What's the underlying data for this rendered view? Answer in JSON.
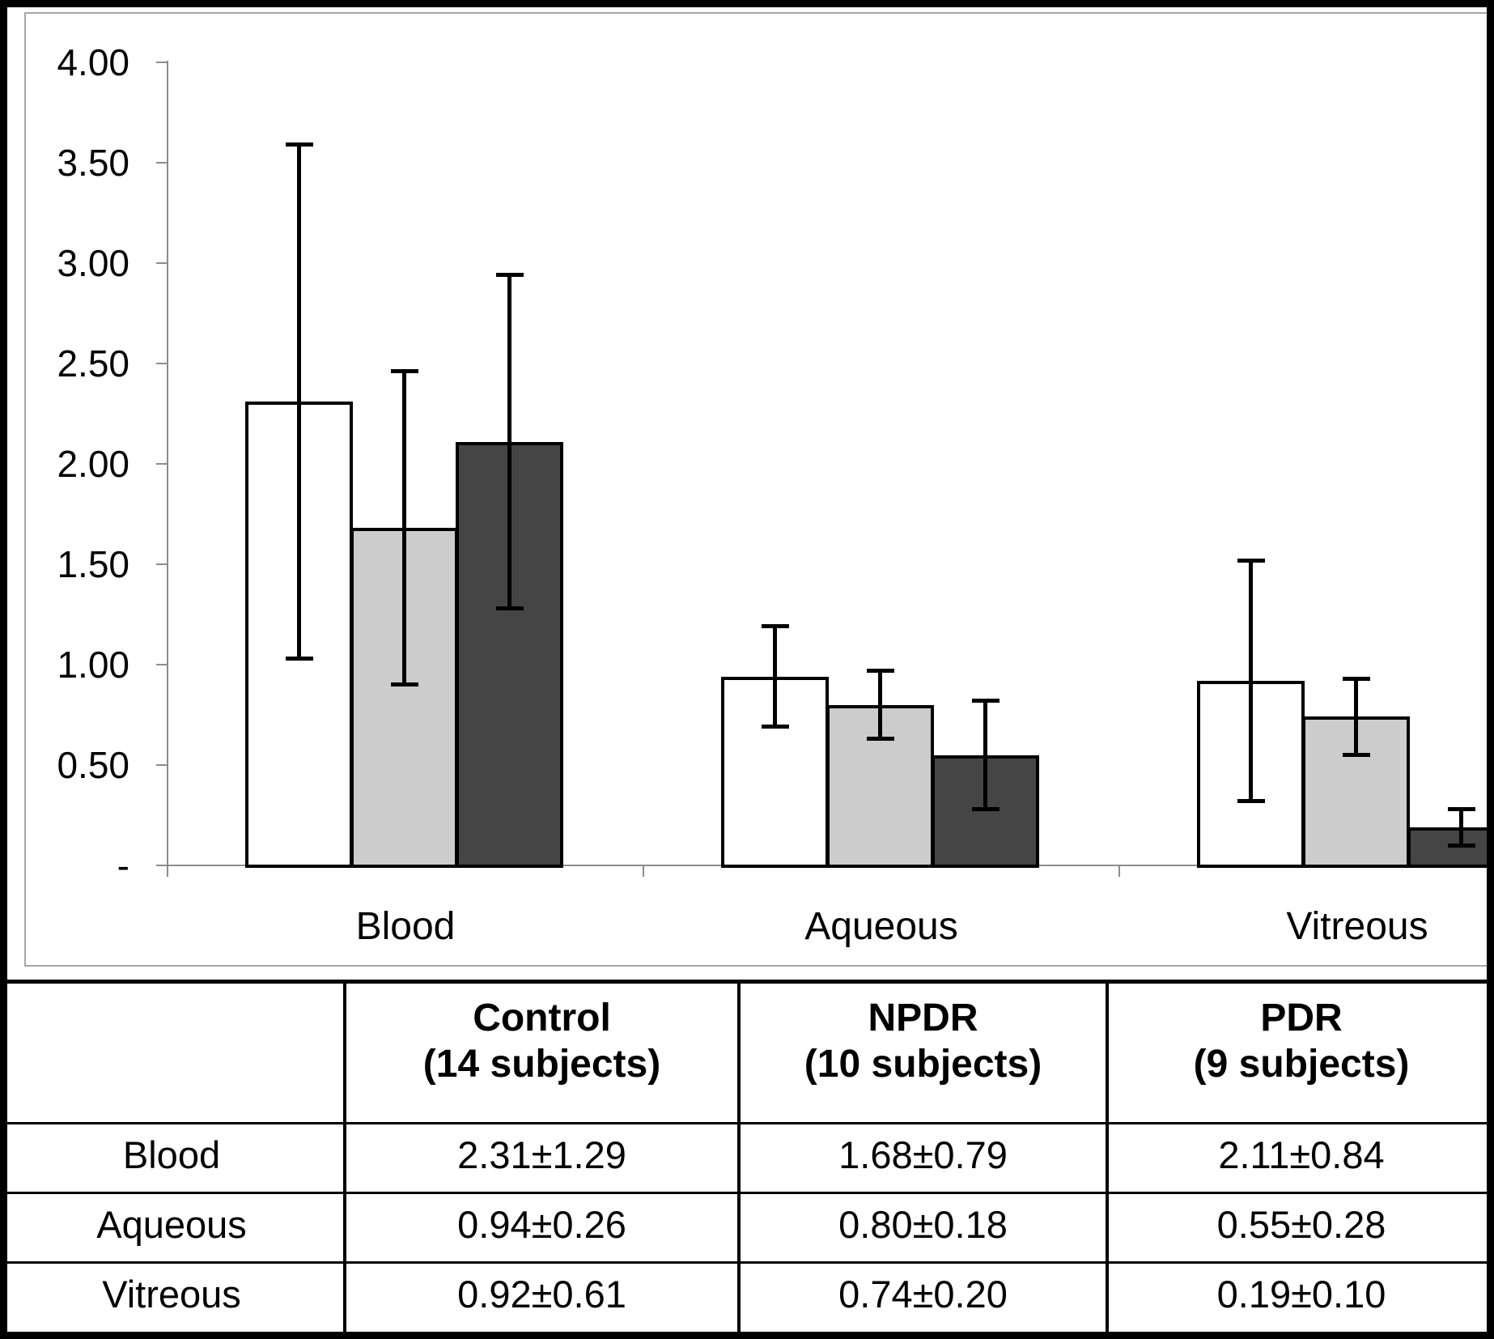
{
  "chart_data": {
    "type": "bar",
    "title": "",
    "xlabel": "",
    "ylabel": "",
    "categories": [
      "Blood",
      "Aqueous",
      "Vitreous"
    ],
    "series": [
      {
        "name": "Control (14 subjects)",
        "fill": "#FFFFFF",
        "means": [
          2.31,
          0.94,
          0.92
        ],
        "sd": [
          1.29,
          0.26,
          0.61
        ]
      },
      {
        "name": "NPDR (10 subjects)",
        "fill": "#CCCCCC",
        "means": [
          1.68,
          0.8,
          0.74
        ],
        "sd": [
          0.79,
          0.18,
          0.2
        ]
      },
      {
        "name": "PDR (9 subjects)",
        "fill": "#454545",
        "means": [
          2.11,
          0.55,
          0.19
        ],
        "sd": [
          0.84,
          0.28,
          0.1
        ]
      }
    ],
    "error_bars": "plus-minus SD",
    "ylim": [
      0,
      4
    ],
    "y_ticks": [
      {
        "v": 4.0,
        "label": "4.00"
      },
      {
        "v": 3.5,
        "label": "3.50"
      },
      {
        "v": 3.0,
        "label": "3.00"
      },
      {
        "v": 2.5,
        "label": "2.50"
      },
      {
        "v": 2.0,
        "label": "2.00"
      },
      {
        "v": 1.5,
        "label": "1.50"
      },
      {
        "v": 1.0,
        "label": "1.00"
      },
      {
        "v": 0.5,
        "label": "0.50"
      },
      {
        "v": 0.0,
        "label": "-"
      }
    ],
    "grid": false,
    "legend": false
  },
  "table": {
    "headers": [
      "",
      "Control\n(14 subjects)",
      "NPDR\n(10 subjects)",
      "PDR\n(9 subjects)"
    ],
    "rows": [
      {
        "label": "Blood",
        "values": [
          "2.31±1.29",
          "1.68±0.79",
          "2.11±0.84"
        ]
      },
      {
        "label": "Aqueous",
        "values": [
          "0.94±0.26",
          "0.80±0.18",
          "0.55±0.28"
        ]
      },
      {
        "label": "Vitreous",
        "values": [
          "0.92±0.61",
          "0.74±0.20",
          "0.19±0.10"
        ]
      }
    ]
  },
  "colors": {
    "bar_outline": "#000000",
    "axis": "#8c8c8c",
    "frame": "#a6a6a6",
    "error_bar": "#000000"
  }
}
